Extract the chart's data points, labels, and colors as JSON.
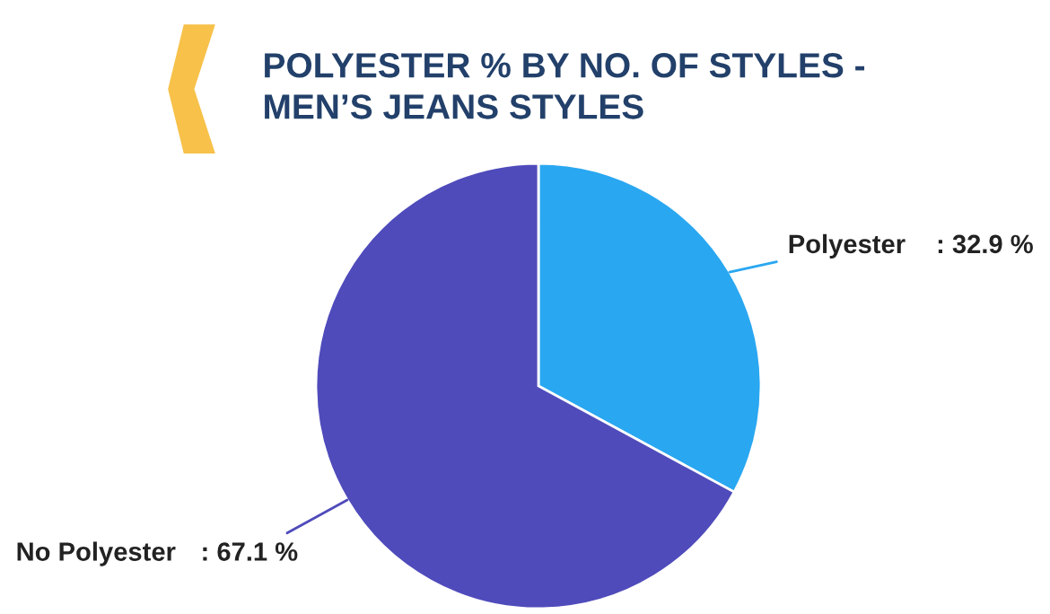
{
  "chart_data": {
    "type": "pie",
    "title": "POLYESTER % BY NO. OF STYLES -\nMEN’S JEANS STYLES",
    "categories": [
      "Polyester",
      "No Polyester"
    ],
    "values": [
      32.9,
      67.1
    ],
    "colors": [
      "#2aa7f1",
      "#4f4bbb"
    ],
    "value_labels": [
      ": 32.9 %",
      ": 67.1 %"
    ],
    "legend": false
  }
}
